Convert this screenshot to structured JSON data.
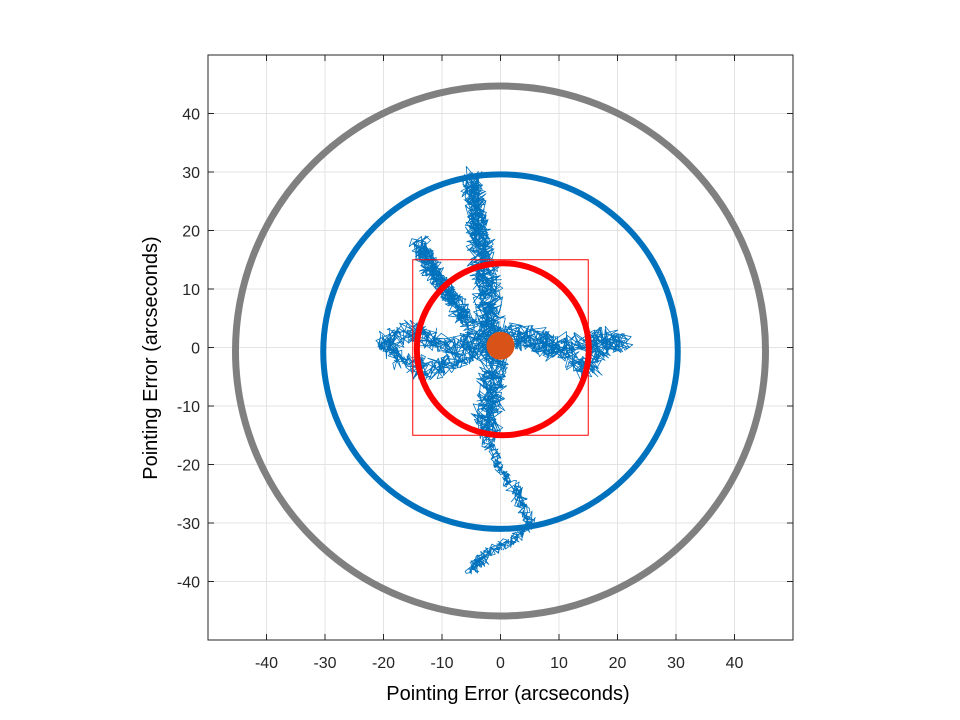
{
  "chart_data": {
    "type": "line",
    "title": "",
    "xlabel": "Pointing Error (arcseconds)",
    "ylabel": "Pointing Error (arcseconds)",
    "xlim": [
      -50,
      50
    ],
    "ylim": [
      -50,
      50
    ],
    "grid": true,
    "xticks": [
      -40,
      -30,
      -20,
      -10,
      0,
      10,
      20,
      30,
      40
    ],
    "yticks": [
      -40,
      -30,
      -20,
      -10,
      0,
      10,
      20,
      30,
      40
    ],
    "circles": [
      {
        "name": "outer-limit-circle",
        "cx": 0,
        "cy": -0.6,
        "r": 45.3,
        "color": "#808080"
      },
      {
        "name": "middle-limit-circle",
        "cx": 0,
        "cy": -0.7,
        "r": 30.3,
        "color": "#0072BD"
      },
      {
        "name": "inner-limit-circle",
        "cx": 0.4,
        "cy": -0.3,
        "r": 14.7,
        "color": "#FF0000"
      }
    ],
    "box": {
      "xmin": -15,
      "xmax": 15,
      "ymin": -15,
      "ymax": 15,
      "color": "#FF0000"
    },
    "center_cluster": {
      "cx": 0,
      "cy": 0.3,
      "r": 2.4,
      "color": "#D95319"
    },
    "walk": {
      "color": "#0072BD",
      "segments": [
        {
          "points": [
            [
              -2,
              0
            ],
            [
              -3,
              10
            ],
            [
              -4,
              20
            ],
            [
              -5,
              29
            ],
            [
              -4,
              22
            ],
            [
              -2,
              12
            ],
            [
              -1,
              3
            ]
          ],
          "spread": 1.6
        },
        {
          "points": [
            [
              -4,
              2
            ],
            [
              -8,
              8
            ],
            [
              -12,
              14
            ],
            [
              -14,
              18
            ],
            [
              -11,
              12
            ],
            [
              -6,
              5
            ]
          ],
          "spread": 1.4
        },
        {
          "points": [
            [
              -3,
              1
            ],
            [
              -9,
              0
            ],
            [
              -15,
              3
            ],
            [
              -20,
              1
            ],
            [
              -17,
              -2
            ],
            [
              -12,
              -4
            ],
            [
              -7,
              -2
            ],
            [
              -2,
              0
            ]
          ],
          "spread": 1.6
        },
        {
          "points": [
            [
              -3,
              3
            ],
            [
              5,
              2
            ],
            [
              12,
              0
            ],
            [
              17,
              2
            ],
            [
              21,
              1
            ],
            [
              16,
              -1
            ],
            [
              15,
              -4
            ],
            [
              11,
              -1
            ],
            [
              4,
              1
            ],
            [
              0,
              1
            ]
          ],
          "spread": 1.5
        },
        {
          "points": [
            [
              -1,
              0
            ],
            [
              -2,
              -6
            ],
            [
              -3,
              -11
            ],
            [
              -2,
              -16
            ],
            [
              -1,
              -8
            ],
            [
              0,
              -2
            ]
          ],
          "spread": 1.5
        },
        {
          "points": [
            [
              -2,
              -16
            ],
            [
              0,
              -21
            ],
            [
              3,
              -25
            ],
            [
              5,
              -30
            ],
            [
              2,
              -33
            ],
            [
              -2,
              -35
            ],
            [
              -5,
              -38
            ],
            [
              -3,
              -36
            ]
          ],
          "spread": 0.9
        }
      ]
    }
  }
}
